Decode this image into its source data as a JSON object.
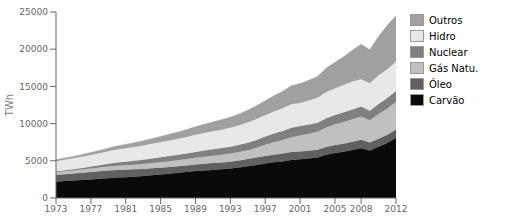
{
  "chart_data": {
    "type": "area",
    "stacked": true,
    "x": [
      1973,
      1974,
      1975,
      1976,
      1977,
      1978,
      1979,
      1980,
      1981,
      1982,
      1983,
      1984,
      1985,
      1986,
      1987,
      1988,
      1989,
      1990,
      1991,
      1992,
      1993,
      1994,
      1995,
      1996,
      1997,
      1998,
      1999,
      2000,
      2001,
      2002,
      2003,
      2004,
      2005,
      2006,
      2007,
      2008,
      2009,
      2010,
      2011,
      2012
    ],
    "series": [
      {
        "name": "Carvão",
        "color": "#0a0a0a",
        "values": [
          2200,
          2280,
          2350,
          2420,
          2500,
          2580,
          2660,
          2750,
          2800,
          2870,
          2950,
          3050,
          3150,
          3250,
          3380,
          3500,
          3620,
          3700,
          3780,
          3860,
          3950,
          4100,
          4270,
          4450,
          4650,
          4800,
          4920,
          5100,
          5200,
          5300,
          5450,
          5800,
          6050,
          6200,
          6450,
          6700,
          6400,
          6900,
          7400,
          8100
        ]
      },
      {
        "name": "Óleo",
        "color": "#606060",
        "values": [
          900,
          920,
          940,
          960,
          980,
          1000,
          1020,
          1020,
          1000,
          980,
          960,
          940,
          920,
          900,
          890,
          880,
          890,
          900,
          910,
          920,
          930,
          940,
          960,
          980,
          1010,
          1030,
          1050,
          1080,
          1060,
          1040,
          1020,
          1040,
          1060,
          1080,
          1100,
          1120,
          1060,
          1080,
          1090,
          1100
        ]
      },
      {
        "name": "Gás Natu.",
        "color": "#c0c0c0",
        "values": [
          380,
          400,
          420,
          450,
          480,
          510,
          540,
          570,
          600,
          630,
          660,
          700,
          740,
          780,
          820,
          860,
          900,
          950,
          1000,
          1050,
          1100,
          1150,
          1200,
          1320,
          1500,
          1680,
          1820,
          2000,
          2150,
          2300,
          2450,
          2650,
          2800,
          2950,
          3050,
          3150,
          3000,
          3300,
          3550,
          3750
        ]
      },
      {
        "name": "Nuclear",
        "color": "#808080",
        "values": [
          100,
          130,
          170,
          210,
          260,
          310,
          370,
          430,
          480,
          530,
          580,
          620,
          660,
          700,
          720,
          750,
          780,
          820,
          860,
          880,
          920,
          960,
          1010,
          1060,
          1110,
          1160,
          1210,
          1260,
          1270,
          1240,
          1200,
          1230,
          1260,
          1290,
          1310,
          1340,
          1280,
          1340,
          1390,
          1440
        ]
      },
      {
        "name": "Hidro",
        "color": "#e8e8e8",
        "values": [
          1350,
          1400,
          1450,
          1500,
          1560,
          1620,
          1680,
          1750,
          1800,
          1860,
          1920,
          1980,
          2040,
          2100,
          2160,
          2220,
          2300,
          2380,
          2420,
          2480,
          2540,
          2620,
          2720,
          2820,
          2860,
          2960,
          3060,
          3160,
          3100,
          3220,
          3340,
          3540,
          3560,
          3660,
          3760,
          3650,
          3680,
          3880,
          3880,
          3960
        ]
      },
      {
        "name": "Outros",
        "color": "#a0a0a0",
        "values": [
          200,
          230,
          260,
          300,
          340,
          380,
          430,
          480,
          520,
          570,
          620,
          680,
          750,
          830,
          910,
          990,
          1070,
          1160,
          1250,
          1340,
          1430,
          1530,
          1650,
          1780,
          1940,
          2100,
          2280,
          2480,
          2600,
          2720,
          2860,
          3200,
          3500,
          3820,
          4200,
          4700,
          4500,
          5200,
          5900,
          6150
        ]
      }
    ],
    "xlim": [
      1973,
      2012
    ],
    "xticks": [
      1973,
      1977,
      1981,
      1985,
      1989,
      1993,
      1997,
      2001,
      2005,
      2008,
      2012
    ],
    "ylim": [
      0,
      25000
    ],
    "yticks": [
      0,
      5000,
      10000,
      15000,
      20000,
      25000
    ],
    "ylabel": "TWh",
    "grid": false,
    "legend": "right"
  }
}
